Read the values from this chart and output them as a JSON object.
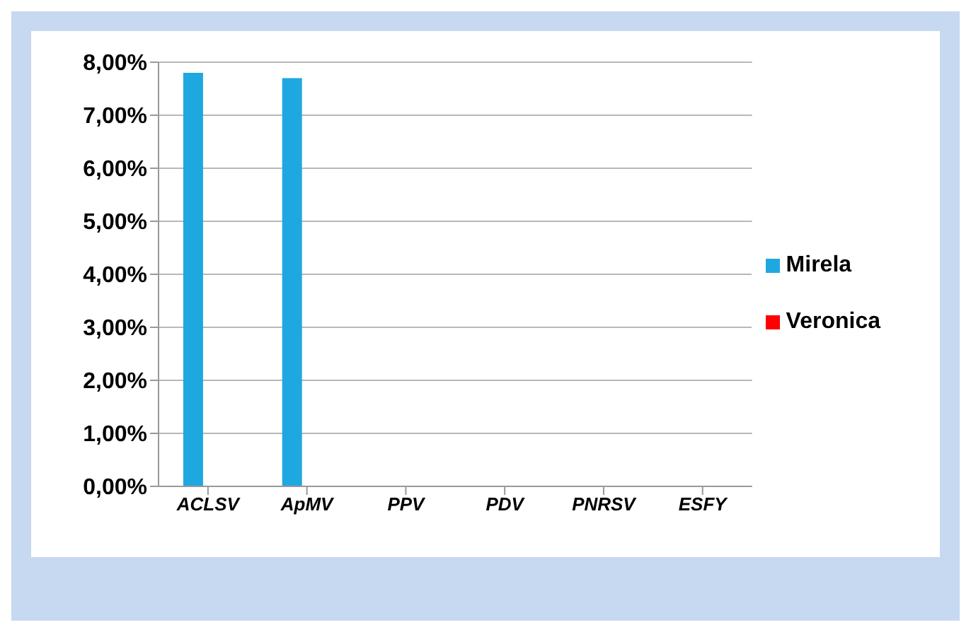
{
  "chart_data": {
    "type": "bar",
    "categories": [
      "ACLSV",
      "ApMV",
      "PPV",
      "PDV",
      "PNRSV",
      "ESFY"
    ],
    "series": [
      {
        "name": "Mirela",
        "color": "#1fa8e0",
        "values": [
          7.8,
          7.7,
          0,
          0,
          0,
          0
        ]
      },
      {
        "name": "Veronica",
        "color": "#ff0000",
        "values": [
          0,
          0,
          0,
          0,
          0,
          0
        ]
      }
    ],
    "ylim": [
      0,
      8
    ],
    "yticks": [
      {
        "value": 0,
        "label": "0,00%"
      },
      {
        "value": 1,
        "label": "1,00%"
      },
      {
        "value": 2,
        "label": "2,00%"
      },
      {
        "value": 3,
        "label": "3,00%"
      },
      {
        "value": 4,
        "label": "4,00%"
      },
      {
        "value": 5,
        "label": "5,00%"
      },
      {
        "value": 6,
        "label": "6,00%"
      },
      {
        "value": 7,
        "label": "7,00%"
      },
      {
        "value": 8,
        "label": "8,00%"
      }
    ],
    "grid": "y",
    "legend": "right"
  }
}
